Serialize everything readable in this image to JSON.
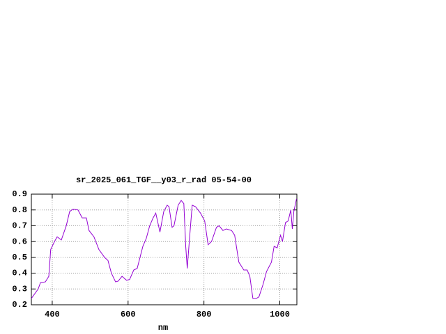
{
  "chart_data": {
    "type": "line",
    "title": "sr_2025_061_TGF__y03_r_rad 05-54-00",
    "x_label": "nm",
    "x": [
      345,
      363,
      369,
      382,
      391,
      396,
      406,
      413,
      424,
      437,
      446,
      455,
      468,
      479,
      490,
      497,
      510,
      523,
      538,
      547,
      556,
      567,
      574,
      584,
      596,
      604,
      615,
      624,
      639,
      648,
      657,
      666,
      673,
      684,
      694,
      703,
      708,
      716,
      721,
      732,
      740,
      747,
      752,
      756,
      762,
      769,
      778,
      791,
      802,
      811,
      820,
      833,
      840,
      850,
      859,
      873,
      881,
      892,
      905,
      914,
      921,
      929,
      938,
      945,
      956,
      965,
      978,
      985,
      993,
      1002,
      1007,
      1015,
      1022,
      1029,
      1033,
      1037,
      1044
    ],
    "series": [
      {
        "color": "#9400d3",
        "values": [
          0.24,
          0.3,
          0.34,
          0.345,
          0.38,
          0.55,
          0.6,
          0.63,
          0.61,
          0.7,
          0.79,
          0.805,
          0.8,
          0.75,
          0.75,
          0.67,
          0.63,
          0.55,
          0.5,
          0.48,
          0.4,
          0.345,
          0.35,
          0.38,
          0.355,
          0.36,
          0.42,
          0.43,
          0.57,
          0.62,
          0.7,
          0.75,
          0.78,
          0.66,
          0.79,
          0.83,
          0.82,
          0.69,
          0.7,
          0.83,
          0.86,
          0.84,
          0.57,
          0.43,
          0.62,
          0.83,
          0.82,
          0.78,
          0.73,
          0.58,
          0.6,
          0.69,
          0.7,
          0.67,
          0.68,
          0.67,
          0.64,
          0.47,
          0.42,
          0.42,
          0.38,
          0.24,
          0.24,
          0.25,
          0.33,
          0.41,
          0.47,
          0.57,
          0.56,
          0.64,
          0.6,
          0.72,
          0.73,
          0.8,
          0.68,
          0.79,
          0.87
        ]
      }
    ],
    "xlim": [
      345,
      1045
    ],
    "ylim": [
      0.2,
      0.9
    ],
    "xticks": [
      400,
      600,
      800,
      1000
    ],
    "yticks": [
      0.2,
      0.3,
      0.4,
      0.5,
      0.6,
      0.7,
      0.8,
      0.9
    ],
    "grid": true
  }
}
